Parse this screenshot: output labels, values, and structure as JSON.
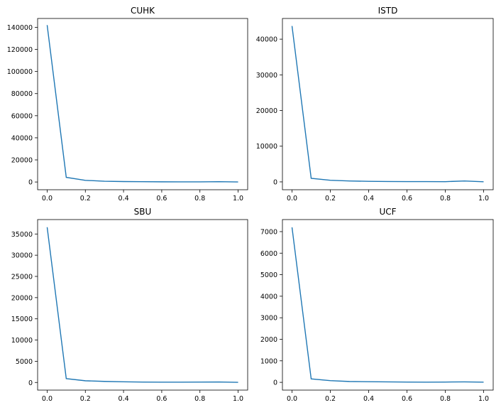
{
  "chart_data": [
    {
      "type": "line",
      "title": "CUHK",
      "xlim": [
        -0.05,
        1.05
      ],
      "ylim": [
        -7000,
        148000
      ],
      "xticks": [
        0.0,
        0.2,
        0.4,
        0.6,
        0.8,
        1.0
      ],
      "xtick_labels": [
        "0.0",
        "0.2",
        "0.4",
        "0.6",
        "0.8",
        "1.0"
      ],
      "yticks": [
        0,
        20000,
        40000,
        60000,
        80000,
        100000,
        120000,
        140000
      ],
      "ytick_labels": [
        "0",
        "20000",
        "40000",
        "60000",
        "80000",
        "100000",
        "120000",
        "140000"
      ],
      "grid": false,
      "series": [
        {
          "color": "#1f77b4",
          "x": [
            0.0,
            0.1,
            0.2,
            0.3,
            0.4,
            0.5,
            0.6,
            0.7,
            0.8,
            0.9,
            1.0
          ],
          "y": [
            142000,
            4200,
            1500,
            700,
            400,
            250,
            150,
            120,
            100,
            300,
            50
          ]
        }
      ]
    },
    {
      "type": "line",
      "title": "ISTD",
      "xlim": [
        -0.05,
        1.05
      ],
      "ylim": [
        -2200,
        45800
      ],
      "xticks": [
        0.0,
        0.2,
        0.4,
        0.6,
        0.8,
        1.0
      ],
      "xtick_labels": [
        "0.0",
        "0.2",
        "0.4",
        "0.6",
        "0.8",
        "1.0"
      ],
      "yticks": [
        0,
        10000,
        20000,
        30000,
        40000
      ],
      "ytick_labels": [
        "0",
        "10000",
        "20000",
        "30000",
        "40000"
      ],
      "grid": false,
      "series": [
        {
          "color": "#1f77b4",
          "x": [
            0.0,
            0.1,
            0.2,
            0.3,
            0.4,
            0.5,
            0.6,
            0.7,
            0.8,
            0.9,
            1.0
          ],
          "y": [
            43700,
            1000,
            450,
            250,
            150,
            100,
            80,
            70,
            60,
            250,
            30
          ]
        }
      ]
    },
    {
      "type": "line",
      "title": "SBU",
      "xlim": [
        -0.05,
        1.05
      ],
      "ylim": [
        -1800,
        38400
      ],
      "xticks": [
        0.0,
        0.2,
        0.4,
        0.6,
        0.8,
        1.0
      ],
      "xtick_labels": [
        "0.0",
        "0.2",
        "0.4",
        "0.6",
        "0.8",
        "1.0"
      ],
      "yticks": [
        0,
        5000,
        10000,
        15000,
        20000,
        25000,
        30000,
        35000
      ],
      "ytick_labels": [
        "0",
        "5000",
        "10000",
        "15000",
        "20000",
        "25000",
        "30000",
        "35000"
      ],
      "grid": false,
      "series": [
        {
          "color": "#1f77b4",
          "x": [
            0.0,
            0.1,
            0.2,
            0.3,
            0.4,
            0.5,
            0.6,
            0.7,
            0.8,
            0.9,
            1.0
          ],
          "y": [
            36600,
            900,
            400,
            250,
            150,
            100,
            80,
            70,
            100,
            120,
            30
          ]
        }
      ]
    },
    {
      "type": "line",
      "title": "UCF",
      "xlim": [
        -0.05,
        1.05
      ],
      "ylim": [
        -360,
        7560
      ],
      "xticks": [
        0.0,
        0.2,
        0.4,
        0.6,
        0.8,
        1.0
      ],
      "xtick_labels": [
        "0.0",
        "0.2",
        "0.4",
        "0.6",
        "0.8",
        "1.0"
      ],
      "yticks": [
        0,
        1000,
        2000,
        3000,
        4000,
        5000,
        6000,
        7000
      ],
      "ytick_labels": [
        "0",
        "1000",
        "2000",
        "3000",
        "4000",
        "5000",
        "6000",
        "7000"
      ],
      "grid": false,
      "series": [
        {
          "color": "#1f77b4",
          "x": [
            0.0,
            0.1,
            0.2,
            0.3,
            0.4,
            0.5,
            0.6,
            0.7,
            0.8,
            0.9,
            1.0
          ],
          "y": [
            7200,
            160,
            80,
            40,
            30,
            20,
            15,
            10,
            15,
            20,
            10
          ]
        }
      ]
    }
  ]
}
